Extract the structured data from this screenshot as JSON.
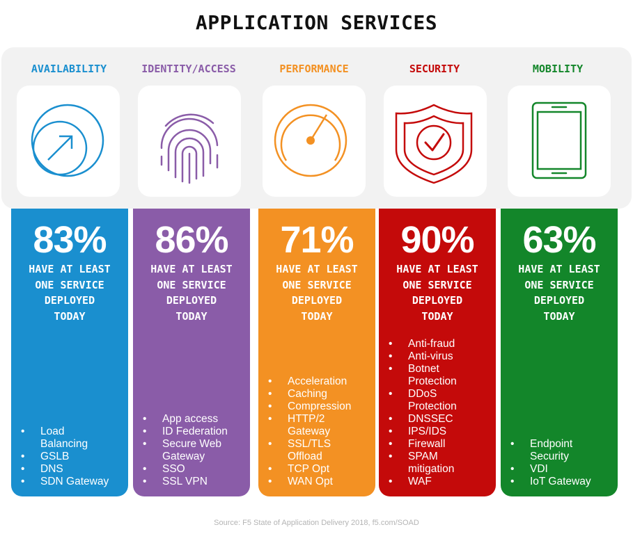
{
  "title": "APPLICATION SERVICES",
  "source": "Source: F5 State of Application Delivery 2018, f5.com/SOAD",
  "columns": [
    {
      "label": "AVAILABILITY",
      "icon": "availability-arrow-icon",
      "color": "#1a8fcf",
      "label_color": "#1a8fcf",
      "percent": "83%",
      "desc": [
        "HAVE AT LEAST",
        "ONE SERVICE",
        "DEPLOYED",
        "TODAY"
      ],
      "items": [
        "Load",
        "Balancing",
        "GSLB",
        "DNS",
        "SDN Gateway"
      ]
    },
    {
      "label": "IDENTITY/ACCESS",
      "icon": "fingerprint-icon",
      "color": "#8a5ca8",
      "label_color": "#8a5ca8",
      "percent": "86%",
      "desc": [
        "HAVE AT LEAST",
        "ONE SERVICE",
        "DEPLOYED",
        "TODAY"
      ],
      "items": [
        "App access",
        "ID Federation",
        "Secure Web",
        "Gateway",
        "SSO",
        "SSL VPN"
      ]
    },
    {
      "label": "PERFORMANCE",
      "icon": "speedometer-icon",
      "color": "#f39123",
      "label_color": "#f39123",
      "percent": "71%",
      "desc": [
        "HAVE AT LEAST",
        "ONE SERVICE",
        "DEPLOYED",
        "TODAY"
      ],
      "items": [
        "Acceleration",
        "Caching",
        "Compression",
        "HTTP/2",
        "Gateway",
        "SSL/TLS",
        "Offload",
        "TCP Opt",
        "WAN Opt"
      ]
    },
    {
      "label": "SECURITY",
      "icon": "shield-check-icon",
      "color": "#c40a0a",
      "label_color": "#c40a0a",
      "percent": "90%",
      "desc": [
        "HAVE AT LEAST",
        "ONE SERVICE",
        "DEPLOYED",
        "TODAY"
      ],
      "items": [
        "Anti-fraud",
        "Anti-virus",
        "Botnet",
        "Protection",
        "DDoS",
        "Protection",
        "DNSSEC",
        "IPS/IDS",
        "Firewall",
        "SPAM",
        "mitigation",
        "WAF"
      ]
    },
    {
      "label": "MOBILITY",
      "icon": "mobile-device-icon",
      "color": "#13862a",
      "label_color": "#13862a",
      "percent": "63%",
      "desc": [
        "HAVE AT LEAST",
        "ONE SERVICE",
        "DEPLOYED",
        "TODAY"
      ],
      "items": [
        "Endpoint",
        "Security",
        "VDI",
        "IoT Gateway"
      ]
    }
  ]
}
